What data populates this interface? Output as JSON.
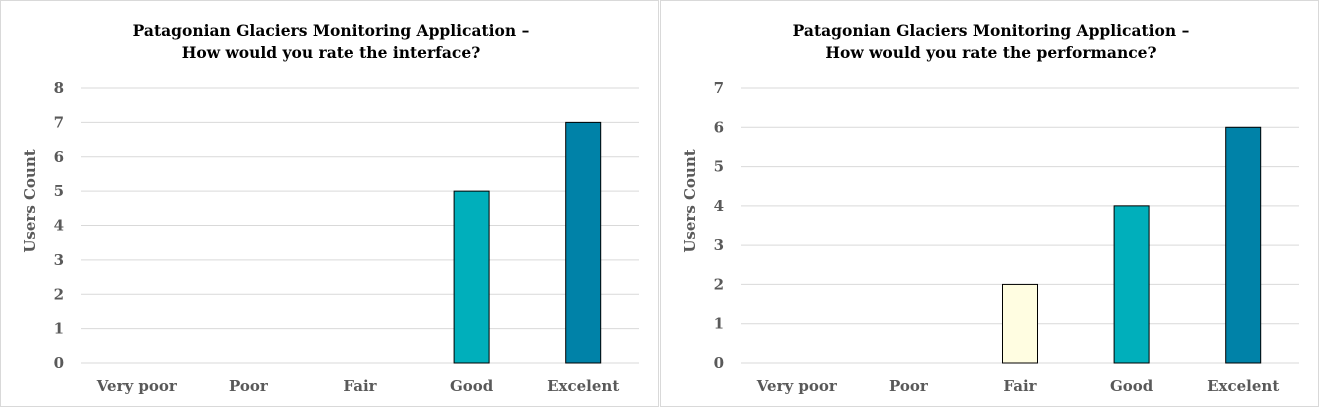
{
  "chart_data": [
    {
      "type": "bar",
      "title_line1": "Patagonian Glaciers Monitoring Application –",
      "title_line2": "How would you rate the interface?",
      "xlabel": "",
      "ylabel": "Users Count",
      "ylim": [
        0,
        8
      ],
      "categories": [
        "Very poor",
        "Poor",
        "Fair",
        "Good",
        "Excelent"
      ],
      "values": [
        0,
        0,
        0,
        5,
        7
      ],
      "colors": [
        "#FFFDE1",
        "#FFFDE1",
        "#FFFDE1",
        "#00AFBB",
        "#0082A8"
      ],
      "grid": true
    },
    {
      "type": "bar",
      "title_line1": "Patagonian Glaciers Monitoring Application –",
      "title_line2": "How would you rate the performance?",
      "xlabel": "",
      "ylabel": "Users Count",
      "ylim": [
        0,
        7
      ],
      "categories": [
        "Very poor",
        "Poor",
        "Fair",
        "Good",
        "Excelent"
      ],
      "values": [
        0,
        0,
        2,
        4,
        6
      ],
      "colors": [
        "#FFFDE1",
        "#FFFDE1",
        "#FFFDE1",
        "#00AFBB",
        "#0082A8"
      ],
      "grid": true
    }
  ]
}
